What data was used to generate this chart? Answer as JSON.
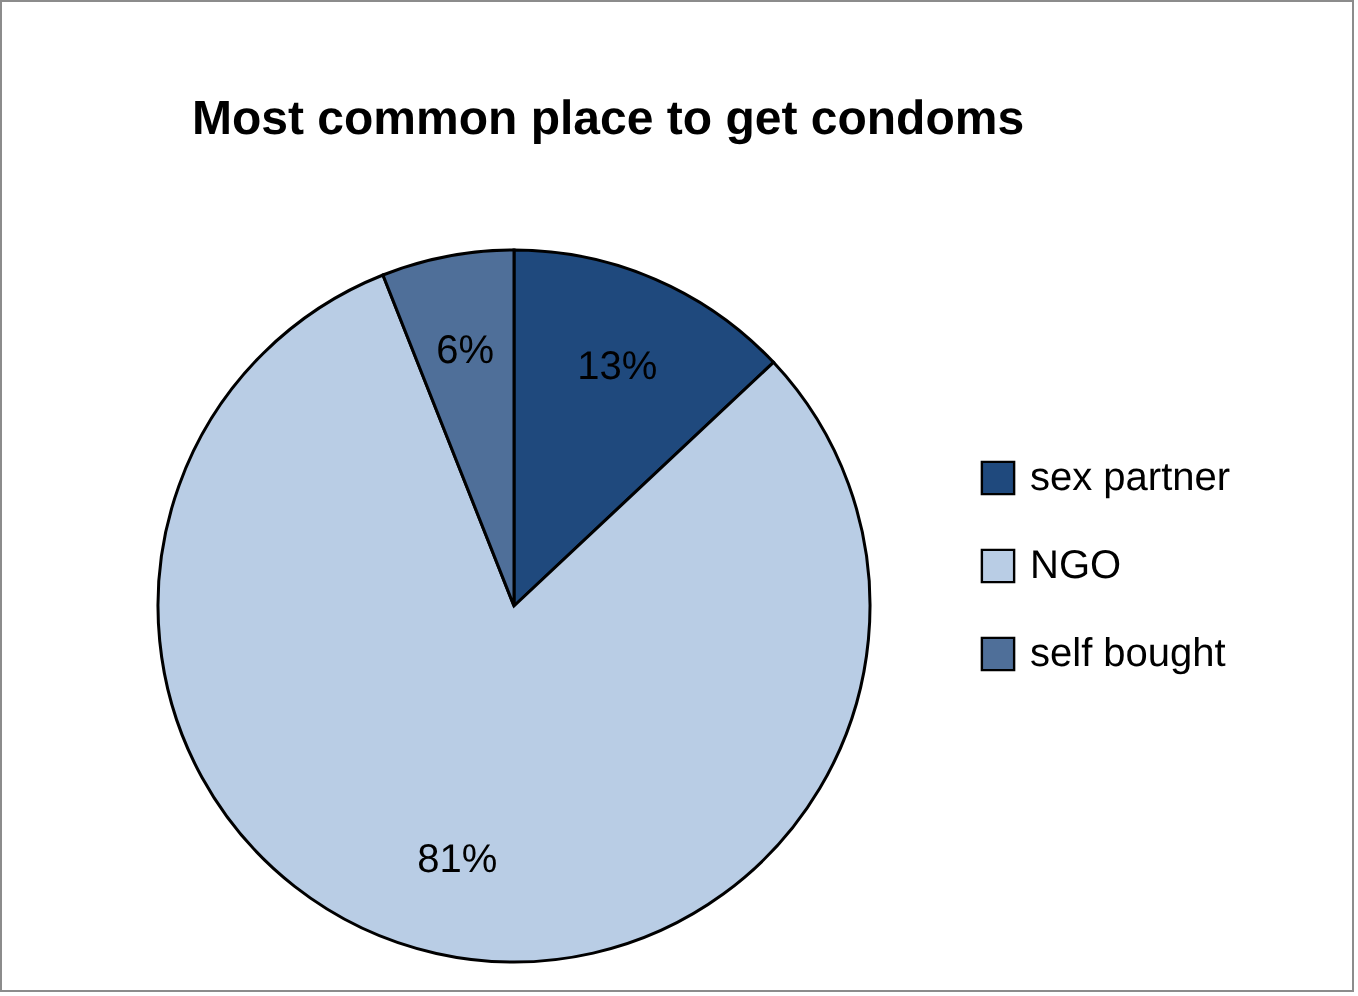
{
  "chart_data": {
    "type": "pie",
    "title": "Most common place to get condoms",
    "categories": [
      "sex partner",
      "NGO",
      "self bought"
    ],
    "values": [
      13,
      81,
      6
    ],
    "colors": [
      "#1f497d",
      "#b9cde5",
      "#4f6f99"
    ],
    "value_labels": [
      "13%",
      "81%",
      "6%"
    ],
    "legend": "right"
  }
}
